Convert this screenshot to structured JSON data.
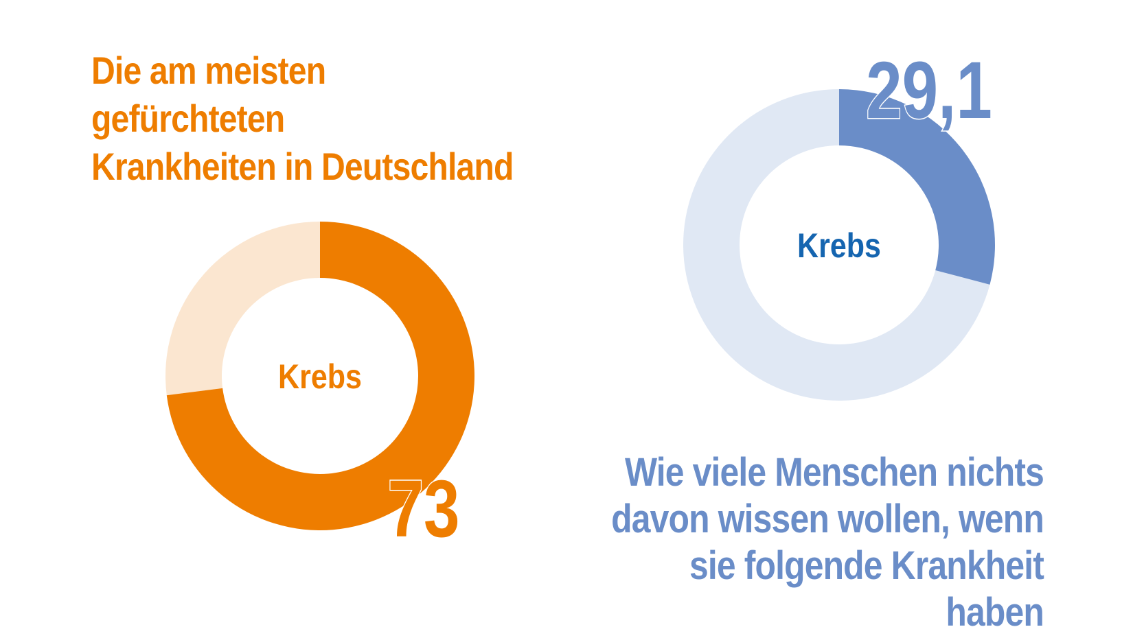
{
  "colors": {
    "orange": "#ee7d00",
    "orange_light": "#fbe6d0",
    "blue": "#6a8dc8",
    "blue_light": "#e0e8f4",
    "blue_label": "#1565b0"
  },
  "titles": {
    "left_line1": "Die am meisten gefürchteten",
    "left_line2": "Krankheiten in Deutschland",
    "right_line1": "Wie viele Menschen nichts",
    "right_line2": "davon wissen wollen, wenn",
    "right_line3": "sie folgende Krankheit haben"
  },
  "chart_data": [
    {
      "type": "pie",
      "variant": "donut",
      "title": "Die am meisten gefürchteten Krankheiten in Deutschland",
      "category": "Krebs",
      "value": 73,
      "value_label": "73",
      "max": 100,
      "color": "#ee7d00",
      "track_color": "#fbe6d0",
      "label_color": "#ee7d00",
      "value_label_position": "bottom-right"
    },
    {
      "type": "pie",
      "variant": "donut",
      "title": "Wie viele Menschen nichts davon wissen wollen, wenn sie folgende Krankheit haben",
      "category": "Krebs",
      "value": 29.1,
      "value_label": "29,1",
      "max": 100,
      "color": "#6a8dc8",
      "track_color": "#e0e8f4",
      "label_color": "#1565b0",
      "value_label_position": "top-right"
    }
  ]
}
